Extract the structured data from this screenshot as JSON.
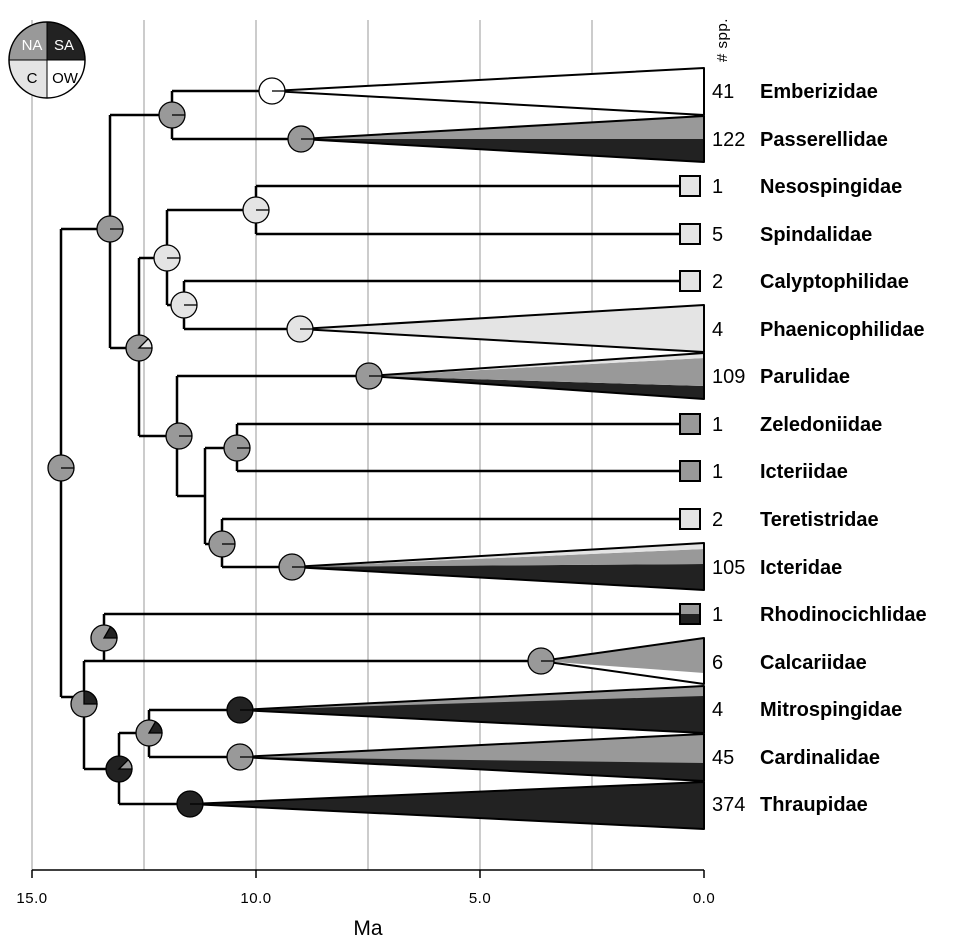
{
  "colors": {
    "NA": "#999999",
    "SA": "#222222",
    "C": "#e4e4e4",
    "OW": "#ffffff"
  },
  "legend": {
    "NA": "NA",
    "SA": "SA",
    "C": "C",
    "OW": "OW"
  },
  "count_header": "# spp.",
  "axis": {
    "label": "Ma",
    "ticks": [
      "15.0",
      "10.0",
      "5.0",
      "0.0"
    ],
    "range": [
      15,
      0
    ]
  },
  "families": [
    {
      "name": "Emberizidae",
      "count": "41"
    },
    {
      "name": "Passerellidae",
      "count": "122"
    },
    {
      "name": "Nesospingidae",
      "count": "1"
    },
    {
      "name": "Spindalidae",
      "count": "5"
    },
    {
      "name": "Calyptophilidae",
      "count": "2"
    },
    {
      "name": "Phaenicophilidae",
      "count": "4"
    },
    {
      "name": "Parulidae",
      "count": "109"
    },
    {
      "name": "Zeledoniidae",
      "count": "1"
    },
    {
      "name": "Icteriidae",
      "count": "1"
    },
    {
      "name": "Teretistridae",
      "count": "2"
    },
    {
      "name": "Icteridae",
      "count": "105"
    },
    {
      "name": "Rhodinocichlidae",
      "count": "1"
    },
    {
      "name": "Calcariidae",
      "count": "6"
    },
    {
      "name": "Mitrospingidae",
      "count": "4"
    },
    {
      "name": "Cardinalidae",
      "count": "45"
    },
    {
      "name": "Thraupidae",
      "count": "374"
    }
  ]
}
